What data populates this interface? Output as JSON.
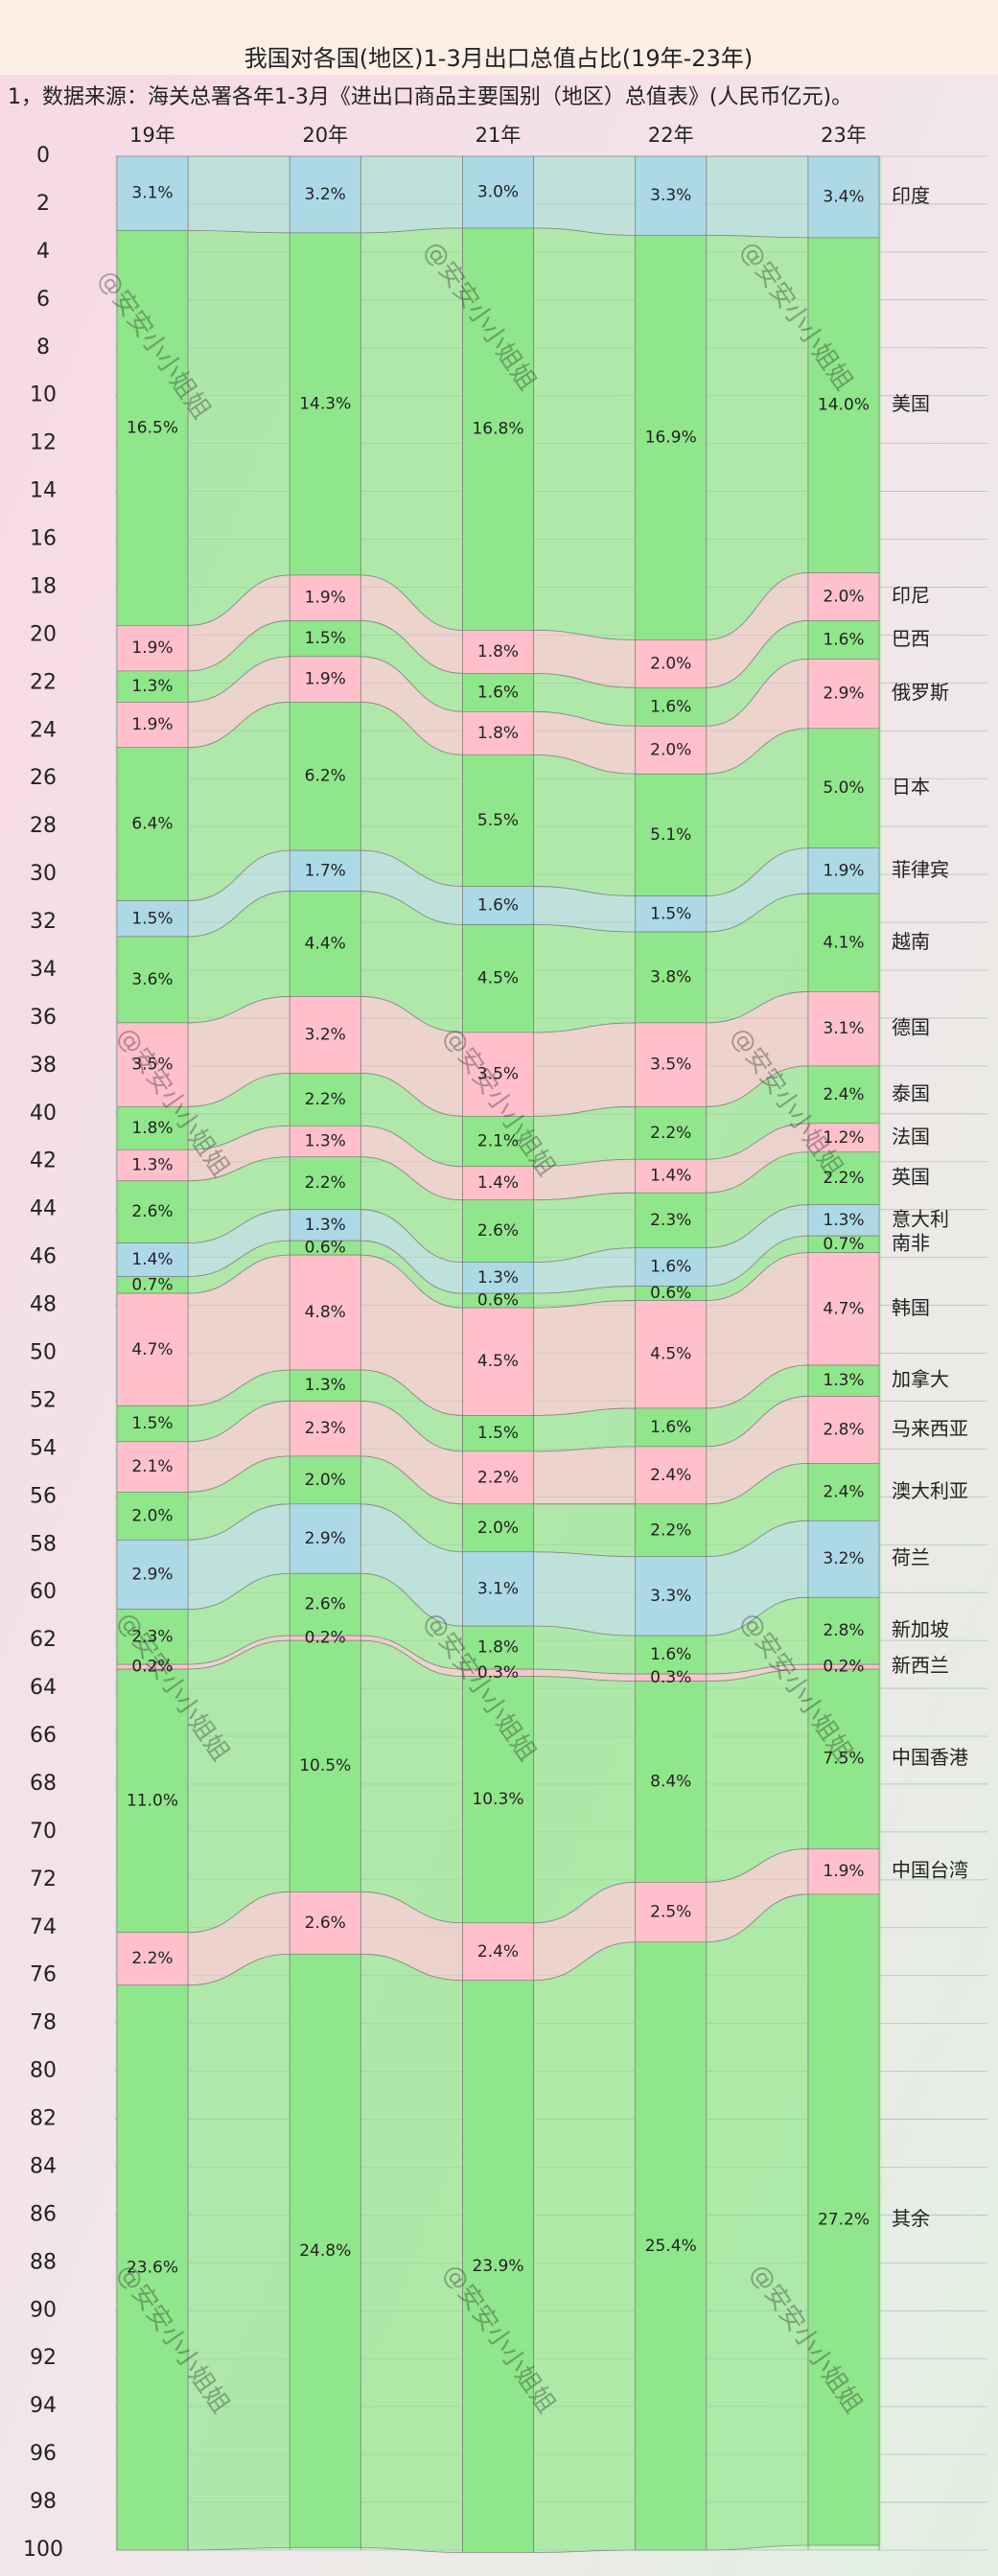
{
  "chart_data": {
    "type": "stacked-ribbon-bar",
    "title": "我国对各国(地区)1-3月出口总值占比(19年-23年)",
    "subtitle": "1，数据来源：海关总署各年1-3月《进出口商品主要国别（地区）总值表》(人民币亿元)。",
    "watermark": "@安安小小姐姐",
    "categories": [
      "19年",
      "20年",
      "21年",
      "22年",
      "23年"
    ],
    "ylim": [
      0,
      100
    ],
    "yticks": [
      0,
      2,
      4,
      6,
      8,
      10,
      12,
      14,
      16,
      18,
      20,
      22,
      24,
      26,
      28,
      30,
      32,
      34,
      36,
      38,
      40,
      42,
      44,
      46,
      48,
      50,
      52,
      54,
      56,
      58,
      60,
      62,
      64,
      66,
      68,
      70,
      72,
      74,
      76,
      78,
      80,
      82,
      84,
      86,
      88,
      90,
      92,
      94,
      96,
      98,
      100
    ],
    "grid": true,
    "series": [
      {
        "name": "印度",
        "color": "#add8e6",
        "values": [
          3.1,
          3.2,
          3.0,
          3.3,
          3.4
        ],
        "value_labels": [
          "3.1%",
          "3.2%",
          "3.0%",
          "3.3%",
          "3.4%"
        ]
      },
      {
        "name": "美国",
        "color": "#90e68a",
        "values": [
          16.5,
          14.3,
          16.8,
          16.9,
          14.0
        ],
        "value_labels": [
          "16.5%",
          "14.3%",
          "16.8%",
          "16.9%",
          "14.0%"
        ]
      },
      {
        "name": "印尼",
        "color": "#ffc0cb",
        "values": [
          1.9,
          1.9,
          1.8,
          2.0,
          2.0
        ],
        "value_labels": [
          "1.9%",
          "1.9%",
          "1.8%",
          "2.0%",
          "2.0%"
        ]
      },
      {
        "name": "巴西",
        "color": "#90e68a",
        "values": [
          1.3,
          1.5,
          1.6,
          1.6,
          1.6
        ],
        "value_labels": [
          "1.3%",
          "1.5%",
          "1.6%",
          "1.6%",
          "1.6%"
        ]
      },
      {
        "name": "俄罗斯",
        "color": "#ffc0cb",
        "values": [
          1.9,
          1.9,
          1.8,
          2.0,
          2.9
        ],
        "value_labels": [
          "1.9%",
          "1.9%",
          "1.8%",
          "2.0%",
          "2.9%"
        ]
      },
      {
        "name": "日本",
        "color": "#90e68a",
        "values": [
          6.4,
          6.2,
          5.5,
          5.1,
          5.0
        ],
        "value_labels": [
          "6.4%",
          "6.2%",
          "5.5%",
          "5.1%",
          "5.0%"
        ]
      },
      {
        "name": "菲律宾",
        "color": "#add8e6",
        "values": [
          1.5,
          1.7,
          1.6,
          1.5,
          1.9
        ],
        "value_labels": [
          "1.5%",
          "1.7%",
          "1.6%",
          "1.5%",
          "1.9%"
        ]
      },
      {
        "name": "越南",
        "color": "#90e68a",
        "values": [
          3.6,
          4.4,
          4.5,
          3.8,
          4.1
        ],
        "value_labels": [
          "3.6%",
          "4.4%",
          "4.5%",
          "3.8%",
          "4.1%"
        ]
      },
      {
        "name": "德国",
        "color": "#ffc0cb",
        "values": [
          3.5,
          3.2,
          3.5,
          3.5,
          3.1
        ],
        "value_labels": [
          "3.5%",
          "3.2%",
          "3.5%",
          "3.5%",
          "3.1%"
        ]
      },
      {
        "name": "泰国",
        "color": "#90e68a",
        "values": [
          1.8,
          2.2,
          2.1,
          2.2,
          2.4
        ],
        "value_labels": [
          "1.8%",
          "2.2%",
          "2.1%",
          "2.2%",
          "2.4%"
        ]
      },
      {
        "name": "法国",
        "color": "#ffc0cb",
        "values": [
          1.3,
          1.3,
          1.4,
          1.4,
          1.2
        ],
        "value_labels": [
          "1.3%",
          "1.3%",
          "1.4%",
          "1.4%",
          "1.2%"
        ]
      },
      {
        "name": "英国",
        "color": "#90e68a",
        "values": [
          2.6,
          2.2,
          2.6,
          2.3,
          2.2
        ],
        "value_labels": [
          "2.6%",
          "2.2%",
          "2.6%",
          "2.3%",
          "2.2%"
        ]
      },
      {
        "name": "意大利",
        "color": "#add8e6",
        "values": [
          1.4,
          1.3,
          1.3,
          1.6,
          1.3
        ],
        "value_labels": [
          "1.4%",
          "1.3%",
          "1.3%",
          "1.6%",
          "1.3%"
        ]
      },
      {
        "name": "南非",
        "color": "#90e68a",
        "values": [
          0.7,
          0.6,
          0.6,
          0.6,
          0.7
        ],
        "value_labels": [
          "0.7%",
          "0.6%",
          "0.6%",
          "0.6%",
          "0.7%"
        ]
      },
      {
        "name": "韩国",
        "color": "#ffc0cb",
        "values": [
          4.7,
          4.8,
          4.5,
          4.5,
          4.7
        ],
        "value_labels": [
          "4.7%",
          "4.8%",
          "4.5%",
          "4.5%",
          "4.7%"
        ]
      },
      {
        "name": "加拿大",
        "color": "#90e68a",
        "values": [
          1.5,
          1.3,
          1.5,
          1.6,
          1.3
        ],
        "value_labels": [
          "1.5%",
          "1.3%",
          "1.5%",
          "1.6%",
          "1.3%"
        ]
      },
      {
        "name": "马来西亚",
        "color": "#ffc0cb",
        "values": [
          2.1,
          2.3,
          2.2,
          2.4,
          2.8
        ],
        "value_labels": [
          "2.1%",
          "2.3%",
          "2.2%",
          "2.4%",
          "2.8%"
        ]
      },
      {
        "name": "澳大利亚",
        "color": "#90e68a",
        "values": [
          2.0,
          2.0,
          2.0,
          2.2,
          2.4
        ],
        "value_labels": [
          "2.0%",
          "2.0%",
          "2.0%",
          "2.2%",
          "2.4%"
        ]
      },
      {
        "name": "荷兰",
        "color": "#add8e6",
        "values": [
          2.9,
          2.9,
          3.1,
          3.3,
          3.2
        ],
        "value_labels": [
          "2.9%",
          "2.9%",
          "3.1%",
          "3.3%",
          "3.2%"
        ]
      },
      {
        "name": "新加坡",
        "color": "#90e68a",
        "values": [
          2.3,
          2.6,
          1.8,
          1.6,
          2.8
        ],
        "value_labels": [
          "2.3%",
          "2.6%",
          "1.8%",
          "1.6%",
          "2.8%"
        ]
      },
      {
        "name": "新西兰",
        "color": "#ffc0cb",
        "values": [
          0.2,
          0.2,
          0.3,
          0.3,
          0.2
        ],
        "value_labels": [
          "0.2%",
          "0.2%",
          "0.3%",
          "0.3%",
          "0.2%"
        ]
      },
      {
        "name": "中国香港",
        "color": "#90e68a",
        "values": [
          11.0,
          10.5,
          10.3,
          8.4,
          7.5
        ],
        "value_labels": [
          "11.0%",
          "10.5%",
          "10.3%",
          "8.4%",
          "7.5%"
        ]
      },
      {
        "name": "中国台湾",
        "color": "#ffc0cb",
        "values": [
          2.2,
          2.6,
          2.4,
          2.5,
          1.9
        ],
        "value_labels": [
          "2.2%",
          "2.6%",
          "2.4%",
          "2.5%",
          "1.9%"
        ]
      },
      {
        "name": "其余",
        "color": "#90e68a",
        "values": [
          23.6,
          24.8,
          23.9,
          25.4,
          27.2
        ],
        "value_labels": [
          "23.6%",
          "24.8%",
          "23.9%",
          "25.4%",
          "27.2%"
        ]
      }
    ]
  }
}
